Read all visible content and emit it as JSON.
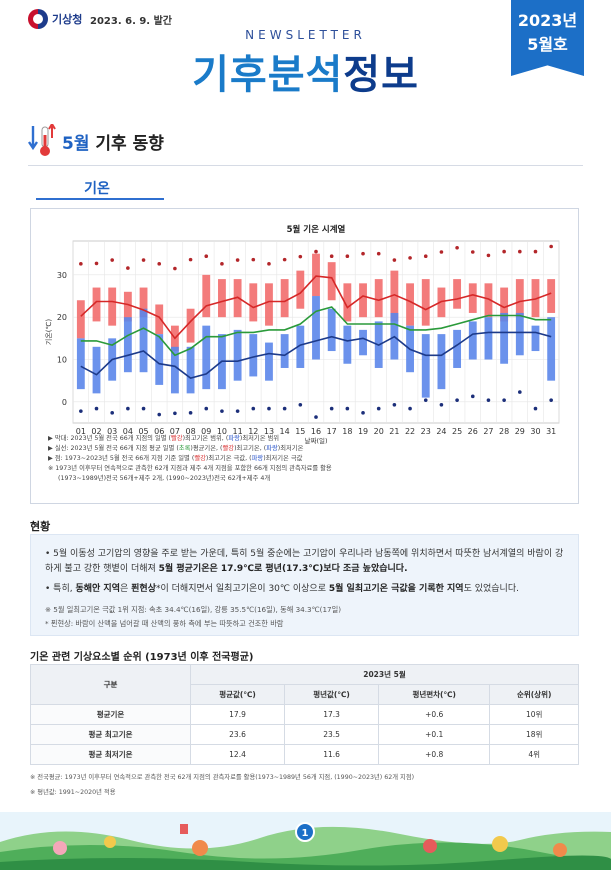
{
  "header": {
    "agency": "기상청",
    "issue_date": "2023. 6. 9. 발간",
    "newsletter_label": "NEWSLETTER",
    "title_part1": "기후분석",
    "title_part2": "정보",
    "ribbon_year": "2023년",
    "ribbon_month": "5월호"
  },
  "section": {
    "title_highlight": "5월",
    "title_rest": " 기후 동향",
    "tab_label": "기온"
  },
  "chart_data": {
    "type": "bar",
    "title": "5월 기온 시계열",
    "xlabel": "날짜(일)",
    "ylabel": "기온(℃)",
    "ylim": [
      -5,
      38
    ],
    "yticks": [
      0,
      10,
      20,
      30
    ],
    "grid": true,
    "categories": [
      "01",
      "02",
      "03",
      "04",
      "05",
      "06",
      "07",
      "08",
      "09",
      "10",
      "11",
      "12",
      "13",
      "14",
      "15",
      "16",
      "17",
      "18",
      "19",
      "20",
      "21",
      "22",
      "23",
      "24",
      "25",
      "26",
      "27",
      "28",
      "29",
      "30",
      "31"
    ],
    "max_temp_range": {
      "low": [
        15,
        19,
        18,
        19,
        20,
        16,
        12,
        14,
        20,
        20,
        20,
        19,
        18,
        20,
        22,
        25,
        24,
        19,
        20,
        20,
        19,
        18,
        18,
        20,
        22,
        21,
        20,
        19,
        20,
        20,
        21
      ],
      "high": [
        24,
        27,
        27,
        26,
        27,
        23,
        18,
        22,
        30,
        29,
        29,
        28,
        28,
        29,
        31,
        35,
        33,
        28,
        28,
        29,
        31,
        28,
        29,
        27,
        29,
        28,
        28,
        27,
        29,
        29,
        29
      ]
    },
    "min_temp_range": {
      "low": [
        3,
        2,
        5,
        7,
        7,
        4,
        2,
        2,
        3,
        3,
        5,
        6,
        5,
        8,
        8,
        10,
        12,
        9,
        11,
        8,
        10,
        7,
        1,
        3,
        8,
        10,
        10,
        9,
        11,
        12,
        5
      ],
      "high": [
        15,
        13,
        15,
        20,
        22,
        16,
        13,
        13,
        18,
        16,
        17,
        16,
        14,
        16,
        18,
        25,
        22,
        18,
        17,
        19,
        21,
        18,
        16,
        16,
        17,
        19,
        20,
        21,
        21,
        18,
        20
      ]
    },
    "series": [
      {
        "name": "평균 최고기온",
        "color": "#d62828",
        "values": [
          20.2,
          23.7,
          23.7,
          23,
          21.7,
          20,
          15,
          19,
          22.7,
          23.7,
          24.7,
          22.3,
          23.7,
          23.7,
          25.7,
          29.7,
          29.3,
          22.3,
          25,
          24,
          25.3,
          23.7,
          21.8,
          23.7,
          24.3,
          25.3,
          24.3,
          22.3,
          23.7,
          24.3,
          25.7
        ]
      },
      {
        "name": "평균기온",
        "color": "#2a9a3a",
        "values": [
          14.4,
          14.4,
          13.4,
          15.7,
          17.4,
          15.4,
          11,
          12.6,
          15.4,
          15.4,
          16.4,
          16.4,
          17,
          17,
          18.4,
          21.4,
          22.4,
          18.4,
          18.4,
          18.4,
          18.4,
          17,
          17,
          17.4,
          18.4,
          19.4,
          20.4,
          20.4,
          20.4,
          19.4,
          19.4
        ]
      },
      {
        "name": "평균 최저기온",
        "color": "#1c3a8a",
        "values": [
          8.4,
          6.4,
          10,
          11,
          12,
          9,
          8.4,
          5.6,
          6.6,
          9.6,
          9.6,
          10.6,
          11.4,
          11,
          13.4,
          14.4,
          15.4,
          14.4,
          15,
          13.4,
          15.4,
          12.4,
          11,
          11,
          13.4,
          16,
          16.4,
          16.4,
          16.4,
          16.4,
          15.4
        ]
      }
    ],
    "record_max": [
      32.6,
      32.7,
      33.5,
      31.6,
      33.5,
      32.6,
      31.5,
      33.6,
      34.4,
      32.6,
      33.5,
      33.6,
      32.6,
      33.6,
      34.3,
      35.5,
      34.4,
      34.4,
      35,
      35,
      33.5,
      34,
      34.4,
      35.4,
      36.4,
      35.4,
      34.6,
      35.5,
      35.5,
      35.5,
      36.7
    ],
    "record_min": [
      -2.2,
      -1.6,
      -2.6,
      -1.6,
      -1.6,
      -3,
      -2.7,
      -2.6,
      -1.6,
      -2.2,
      -2.2,
      -1.6,
      -1.6,
      -1.6,
      -0.7,
      -3.6,
      -1.6,
      -1.6,
      -2.6,
      -1.6,
      -0.7,
      -1.6,
      0.4,
      -0.7,
      0.4,
      1.3,
      0.4,
      0.4,
      2.3,
      -1.6,
      0.4
    ]
  },
  "chart_notes": {
    "note1_a": "▶ 막대: 2023년 5월 전국 66개 지점의 일별 (",
    "note1_red": "빨강",
    "note1_b": ")최고기온 범위, (",
    "note1_blue": "파랑",
    "note1_c": ")최저기온 범위",
    "note2_a": "▶ 실선: 2023년 5월 전국 66개 지점 평균 일별 (",
    "note2_green": "초록",
    "note2_b": ")평균기온, (",
    "note2_red": "빨강",
    "note2_c": ")최고기온, (",
    "note2_blue": "파랑",
    "note2_d": ")최저기온",
    "note3_a": "▶ 점: 1973~2023년 5월 전국 66개 지점 기준 일별 (",
    "note3_red": "빨강",
    "note3_b": ")최고기온 극값, (",
    "note3_blue": "파랑",
    "note3_c": ")최저기온 극값",
    "note4": "※ 1973년 이후부터 연속적으로 관측한 62개 지점과 제주 4개 지점을 포함한 66개 지점의 관측자료를 활용",
    "note5": "(1973~1989년)전국 56개+제주 2개, (1990~2023년)전국 62개+제주 4개"
  },
  "status": {
    "heading": "현황",
    "p1_a": "• 5월 이동성 고기압의 영향을 주로 받는 가운데, 특히 5월 중순에는 고기압이 우리나라 남동쪽에 위치하면서 따뜻한 남서계열의 바람이 강하게 불고 강한 햇볕이 더해져 ",
    "p1_bold": "5월 평균기온은 17.9℃로 평년(17.3℃)보다 조금 높았습니다.",
    "p2_a": "• 특히, ",
    "p2_bold1": "동해안 지역",
    "p2_b": "은 ",
    "p2_bold2": "푄현상",
    "p2_c": "*이 더해지면서 일최고기온이 30℃ 이상으로 ",
    "p2_bold3": "5월 일최고기온 극값을 기록한 지역",
    "p2_d": "도 있었습니다.",
    "fn1": "※ 5월 일최고기온 극값 1위 지점: 속초 34.4℃(16일), 강릉 35.5℃(16일), 동해 34.3℃(17일)",
    "fn2": "* 푄현상: 바람이 산맥을 넘어갈 때 산맥의 풍하 측에 부는 따뜻하고 건조한 바람"
  },
  "table": {
    "title": "기온 관련 기상요소별 순위 (1973년 이후 전국평균)",
    "col_group": "구분",
    "period": "2023년 5월",
    "headers": [
      "평균값(℃)",
      "평년값(℃)",
      "평년편차(℃)",
      "순위(상위)"
    ],
    "rows": [
      {
        "label": "평균기온",
        "cells": [
          "17.9",
          "17.3",
          "+0.6",
          "10위"
        ]
      },
      {
        "label": "평균 최고기온",
        "cells": [
          "23.6",
          "23.5",
          "+0.1",
          "18위"
        ]
      },
      {
        "label": "평균 최저기온",
        "cells": [
          "12.4",
          "11.6",
          "+0.8",
          "4위"
        ]
      }
    ]
  },
  "footnotes": {
    "f1": "※ 전국평균: 1973년 이후부터 연속적으로 관측한 전국 62개 지점의 관측자료를 활용(1973~1989년 56개 지점, (1990~2023년) 62개 지점)",
    "f2": "※ 평년값: 1991~2020년 적용"
  },
  "page_number": "1",
  "colors": {
    "accent": "#1c6fc7",
    "title_dark": "#0d3c8c",
    "max_bar": "#f26d6d",
    "min_bar": "#5b86ea"
  }
}
